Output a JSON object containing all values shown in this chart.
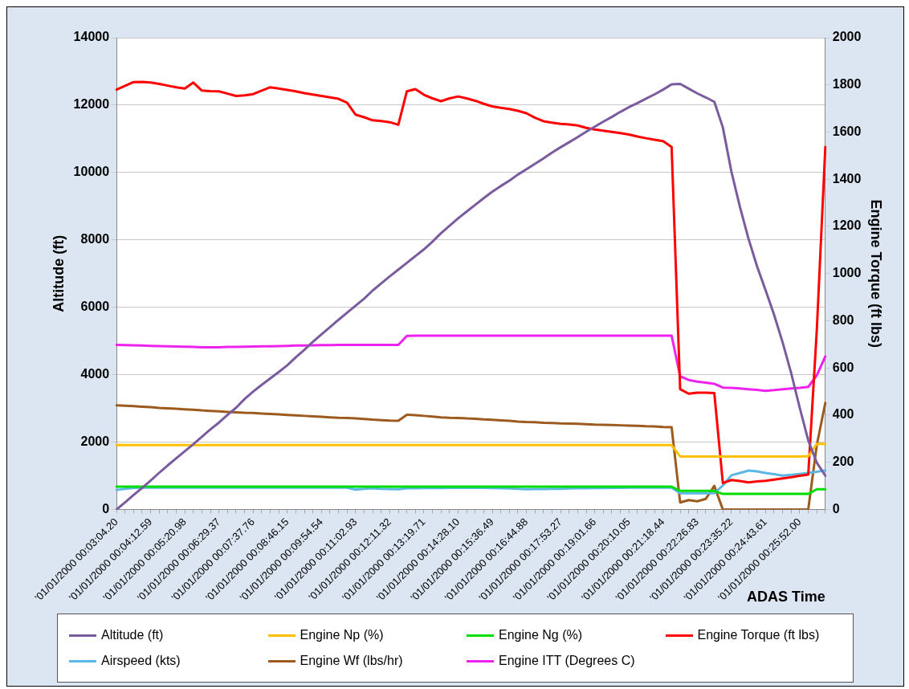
{
  "chart_data": {
    "type": "line",
    "xlabel": "ADAS Time",
    "ylabel": "Altitude (ft)",
    "y2label": "Engine Torque (ft lbs)",
    "categories": [
      "'01/01/2000 00:03:04.20",
      null,
      null,
      null,
      "'01/01/2000 00:04:12.59",
      null,
      null,
      null,
      "'01/01/2000 00:05:20.98",
      null,
      null,
      null,
      "'01/01/2000 00:06:29.37",
      null,
      null,
      null,
      "'01/01/2000 00:07:37.76",
      null,
      null,
      null,
      "'01/01/2000 00:08:46.15",
      null,
      null,
      null,
      "'01/01/2000 00:09:54.54",
      null,
      null,
      null,
      "'01/01/2000 00:11:02.93",
      null,
      null,
      null,
      "'01/01/2000 00:12:11.32",
      null,
      null,
      null,
      "'01/01/2000 00:13:19.71",
      null,
      null,
      null,
      "'01/01/2000 00:14:28.10",
      null,
      null,
      null,
      "'01/01/2000 00:15:36.49",
      null,
      null,
      null,
      "'01/01/2000 00:16:44.88",
      null,
      null,
      null,
      "'01/01/2000 00:17:53.27",
      null,
      null,
      null,
      "'01/01/2000 00:19:01.66",
      null,
      null,
      null,
      "'01/01/2000 00:20:10.05",
      null,
      null,
      null,
      "'01/01/2000 00:21:18.44",
      null,
      null,
      null,
      "'01/01/2000 00:22:26.83",
      null,
      null,
      null,
      "'01/01/2000 00:23:35.22",
      null,
      null,
      null,
      "'01/01/2000 00:24:43.61",
      null,
      null,
      null,
      "'01/01/2000 00:25:52.00",
      null,
      null,
      null
    ],
    "ylim": [
      0,
      14000
    ],
    "y2lim": [
      0,
      2000
    ],
    "yticks": [
      0,
      2000,
      4000,
      6000,
      8000,
      10000,
      12000,
      14000
    ],
    "y2ticks": [
      0,
      200,
      400,
      600,
      800,
      1000,
      1200,
      1400,
      1600,
      1800,
      2000
    ],
    "grid": "y",
    "legend": "bottom",
    "series": [
      {
        "name": "Altitude (ft)",
        "color": "#7a5c9e",
        "values": [
          0,
          210,
          430,
          640,
          860,
          1090,
          1310,
          1520,
          1730,
          1940,
          2160,
          2380,
          2580,
          2810,
          3020,
          3280,
          3500,
          3700,
          3890,
          4080,
          4280,
          4520,
          4740,
          4980,
          5200,
          5410,
          5630,
          5840,
          6050,
          6260,
          6500,
          6710,
          6920,
          7120,
          7320,
          7520,
          7720,
          7950,
          8200,
          8420,
          8640,
          8840,
          9040,
          9240,
          9430,
          9600,
          9760,
          9940,
          10100,
          10260,
          10420,
          10590,
          10750,
          10900,
          11050,
          11210,
          11360,
          11510,
          11650,
          11800,
          11940,
          12060,
          12190,
          12320,
          12460,
          12620,
          12630,
          12490,
          12350,
          12230,
          12100,
          11340,
          10030,
          8980,
          8040,
          7220,
          6510,
          5780,
          4960,
          4050,
          3020,
          2050,
          1390,
          1000
        ]
      },
      {
        "name": "Engine Np (%)",
        "color": "#ffc000",
        "axis": "y2",
        "values": [
          273,
          273,
          273,
          273,
          273,
          273,
          273,
          273,
          273,
          273,
          273,
          273,
          273,
          273,
          273,
          273,
          273,
          273,
          273,
          273,
          273,
          273,
          273,
          273,
          273,
          273,
          273,
          273,
          273,
          273,
          273,
          273,
          273,
          273,
          273,
          273,
          273,
          273,
          273,
          273,
          273,
          273,
          273,
          273,
          273,
          273,
          273,
          273,
          273,
          273,
          273,
          273,
          273,
          273,
          273,
          273,
          273,
          273,
          273,
          273,
          273,
          273,
          273,
          273,
          273,
          273,
          225,
          225,
          225,
          225,
          225,
          225,
          225,
          225,
          225,
          225,
          225,
          225,
          225,
          225,
          225,
          226,
          278,
          278
        ]
      },
      {
        "name": "Engine Ng (%)",
        "color": "#00dd00",
        "axis": "y2",
        "values": [
          97,
          97,
          97,
          97,
          97,
          97,
          97,
          97,
          97,
          97,
          97,
          97,
          97,
          97,
          97,
          97,
          97,
          97,
          97,
          97,
          97,
          97,
          97,
          97,
          97,
          97,
          97,
          97,
          97,
          97,
          97,
          97,
          97,
          97,
          97,
          97,
          97,
          97,
          97,
          97,
          97,
          97,
          97,
          97,
          97,
          97,
          97,
          97,
          97,
          97,
          97,
          97,
          97,
          97,
          97,
          97,
          97,
          97,
          97,
          97,
          97,
          97,
          97,
          97,
          97,
          97,
          79,
          79,
          79,
          79,
          79,
          66,
          66,
          66,
          66,
          66,
          66,
          66,
          66,
          66,
          66,
          66,
          86,
          86
        ]
      },
      {
        "name": "Engine Torque (ft lbs)",
        "color": "#ff0000",
        "axis": "y2",
        "values": [
          1780,
          1796,
          1812,
          1813,
          1810,
          1804,
          1797,
          1790,
          1785,
          1810,
          1776,
          1774,
          1773,
          1763,
          1753,
          1756,
          1761,
          1776,
          1790,
          1785,
          1779,
          1773,
          1765,
          1759,
          1753,
          1747,
          1741,
          1725,
          1674,
          1663,
          1650,
          1647,
          1642,
          1631,
          1773,
          1782,
          1758,
          1743,
          1731,
          1743,
          1751,
          1743,
          1733,
          1720,
          1709,
          1703,
          1698,
          1690,
          1680,
          1661,
          1646,
          1640,
          1635,
          1632,
          1628,
          1618,
          1611,
          1606,
          1601,
          1596,
          1590,
          1581,
          1574,
          1568,
          1562,
          1537,
          510,
          491,
          495,
          495,
          494,
          112,
          125,
          121,
          115,
          119,
          122,
          127,
          132,
          137,
          143,
          148,
          760,
          1537
        ]
      },
      {
        "name": "Airspeed (kts)",
        "color": "#5bb8e6",
        "axis": "y2",
        "values": [
          83,
          88,
          92,
          93,
          93,
          93,
          93,
          93,
          93,
          93,
          93,
          93,
          93,
          93,
          93,
          93,
          93,
          93,
          93,
          93,
          93,
          93,
          93,
          93,
          93,
          93,
          93,
          93,
          84,
          88,
          90,
          88,
          87,
          86,
          90,
          90,
          91,
          91,
          91,
          92,
          92,
          92,
          93,
          92,
          91,
          90,
          89,
          88,
          86,
          87,
          87,
          88,
          88,
          89,
          90,
          90,
          91,
          91,
          92,
          92,
          93,
          93,
          93,
          93,
          93,
          93,
          69,
          69,
          69,
          69,
          69,
          102,
          145,
          155,
          165,
          162,
          155,
          150,
          144,
          147,
          151,
          155,
          160,
          166
        ]
      },
      {
        "name": "Engine Wf (lbs/hr)",
        "color": "#9c5a1e",
        "axis": "y2",
        "values": [
          442,
          440,
          438,
          436,
          434,
          431,
          429,
          427,
          425,
          423,
          420,
          418,
          416,
          414,
          412,
          410,
          409,
          407,
          405,
          403,
          401,
          399,
          397,
          395,
          393,
          391,
          389,
          388,
          386,
          384,
          381,
          379,
          377,
          376,
          402,
          400,
          397,
          394,
          391,
          389,
          388,
          386,
          385,
          382,
          380,
          378,
          376,
          373,
          371,
          370,
          368,
          367,
          365,
          364,
          363,
          362,
          360,
          359,
          358,
          357,
          356,
          355,
          353,
          352,
          350,
          349,
          30,
          40,
          35,
          45,
          100,
          0,
          0,
          0,
          0,
          0,
          0,
          0,
          0,
          0,
          0,
          0,
          273,
          452
        ]
      },
      {
        "name": "Engine ITT (Degrees C)",
        "color": "#ee22ee",
        "axis": "y2",
        "values": [
          698,
          697,
          696,
          695,
          694,
          693,
          692,
          691,
          690,
          689,
          688,
          688,
          688,
          689,
          689,
          690,
          691,
          692,
          692,
          693,
          694,
          695,
          695,
          696,
          697,
          697,
          698,
          698,
          698,
          698,
          698,
          698,
          698,
          698,
          736,
          737,
          737,
          737,
          737,
          737,
          737,
          737,
          737,
          737,
          737,
          737,
          737,
          737,
          737,
          737,
          737,
          737,
          737,
          737,
          737,
          737,
          737,
          737,
          737,
          737,
          737,
          737,
          737,
          737,
          737,
          737,
          565,
          549,
          542,
          538,
          533,
          517,
          516,
          513,
          510,
          507,
          503,
          506,
          510,
          513,
          516,
          520,
          569,
          649
        ]
      }
    ]
  }
}
